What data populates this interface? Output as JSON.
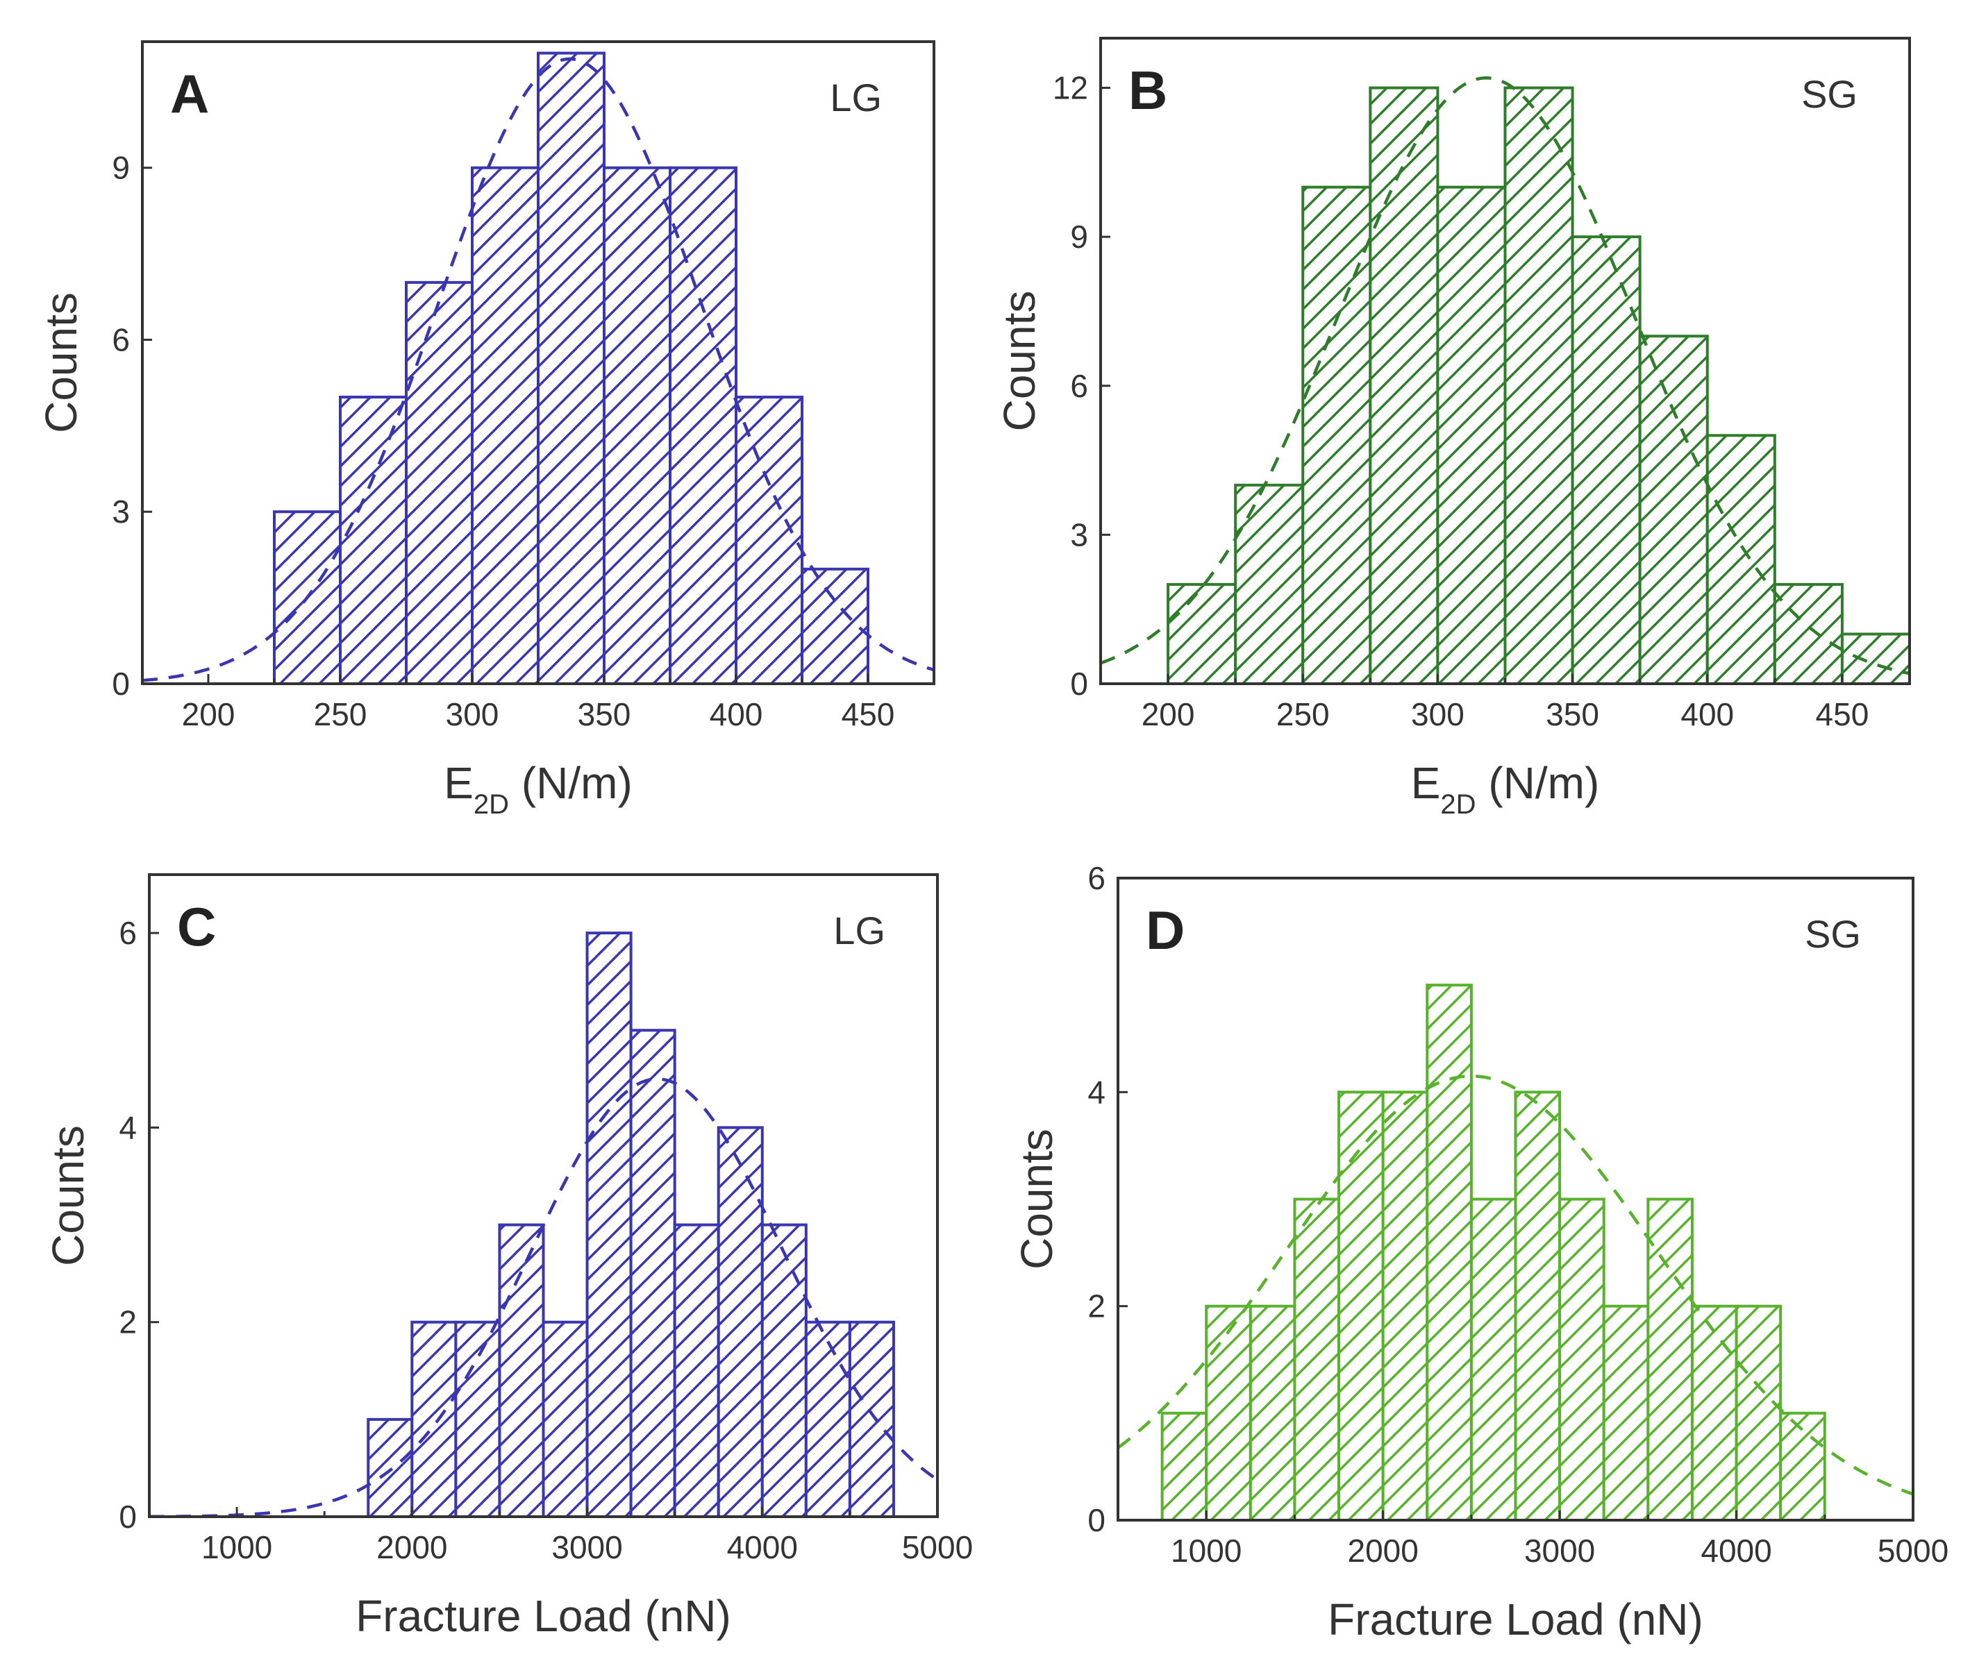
{
  "chart_data": [
    {
      "id": "A",
      "type": "bar",
      "panel_label": "A",
      "annotation": "LG",
      "color": "#3a35b0",
      "xlabel_main": "E",
      "xlabel_sub": "2D",
      "xlabel_rest": " (N/m)",
      "ylabel": "Counts",
      "xlim": [
        175,
        475
      ],
      "ylim": [
        0,
        11.2
      ],
      "xticks": [
        200,
        250,
        300,
        350,
        400,
        450
      ],
      "yticks": [
        0,
        3,
        6,
        9
      ],
      "bin_edges": [
        225,
        250,
        275,
        300,
        325,
        350,
        375,
        400,
        425,
        450
      ],
      "values": [
        3,
        5,
        7,
        9,
        11,
        9,
        9,
        5,
        2
      ],
      "fit": {
        "type": "gaussian",
        "amplitude": 10.9,
        "mean": 337,
        "sigma": 50
      }
    },
    {
      "id": "B",
      "type": "bar",
      "panel_label": "B",
      "annotation": "SG",
      "color": "#2e7d2a",
      "xlabel_main": "E",
      "xlabel_sub": "2D",
      "xlabel_rest": " (N/m)",
      "ylabel": "Counts",
      "xlim": [
        175,
        475
      ],
      "ylim": [
        0,
        13
      ],
      "xticks": [
        200,
        250,
        300,
        350,
        400,
        450
      ],
      "yticks": [
        0,
        3,
        6,
        9,
        12
      ],
      "bin_edges": [
        200,
        225,
        250,
        275,
        300,
        325,
        350,
        375,
        400,
        425,
        450,
        475
      ],
      "values": [
        2,
        4,
        10,
        12,
        10,
        12,
        9,
        7,
        5,
        2,
        1
      ],
      "fit": {
        "type": "gaussian",
        "amplitude": 12.2,
        "mean": 318,
        "sigma": 55
      }
    },
    {
      "id": "C",
      "type": "bar",
      "panel_label": "C",
      "annotation": "LG",
      "color": "#3a35b0",
      "xlabel_main": "Fracture Load (nN)",
      "xlabel_sub": "",
      "xlabel_rest": "",
      "ylabel": "Counts",
      "xlim": [
        500,
        5000
      ],
      "ylim": [
        0,
        6.6
      ],
      "xticks": [
        1000,
        2000,
        3000,
        4000,
        5000
      ],
      "yticks": [
        0,
        2,
        4,
        6
      ],
      "bin_edges": [
        1750,
        2000,
        2250,
        2500,
        2750,
        3000,
        3250,
        3500,
        3750,
        4000,
        4250,
        4500,
        4750
      ],
      "values": [
        1,
        2,
        2,
        3,
        2,
        6,
        5,
        3,
        4,
        3,
        2,
        2
      ],
      "fit": {
        "type": "gaussian",
        "amplitude": 4.5,
        "mean": 3400,
        "sigma": 720
      }
    },
    {
      "id": "D",
      "type": "bar",
      "panel_label": "D",
      "annotation": "SG",
      "color": "#58b22c",
      "xlabel_main": "Fracture Load (nN)",
      "xlabel_sub": "",
      "xlabel_rest": "",
      "ylabel": "Counts",
      "xlim": [
        500,
        5000
      ],
      "ylim": [
        0,
        6
      ],
      "xticks": [
        1000,
        2000,
        3000,
        4000,
        5000
      ],
      "yticks": [
        0,
        2,
        4,
        6
      ],
      "bin_edges": [
        750,
        1000,
        1250,
        1500,
        1750,
        2000,
        2250,
        2500,
        2750,
        3000,
        3250,
        3500,
        3750,
        4000,
        4250,
        4500
      ],
      "values": [
        1,
        2,
        2,
        3,
        4,
        4,
        5,
        3,
        4,
        3,
        2,
        3,
        2,
        2,
        1
      ],
      "fit": {
        "type": "gaussian",
        "amplitude": 4.15,
        "mean": 2500,
        "sigma": 1050
      }
    }
  ]
}
